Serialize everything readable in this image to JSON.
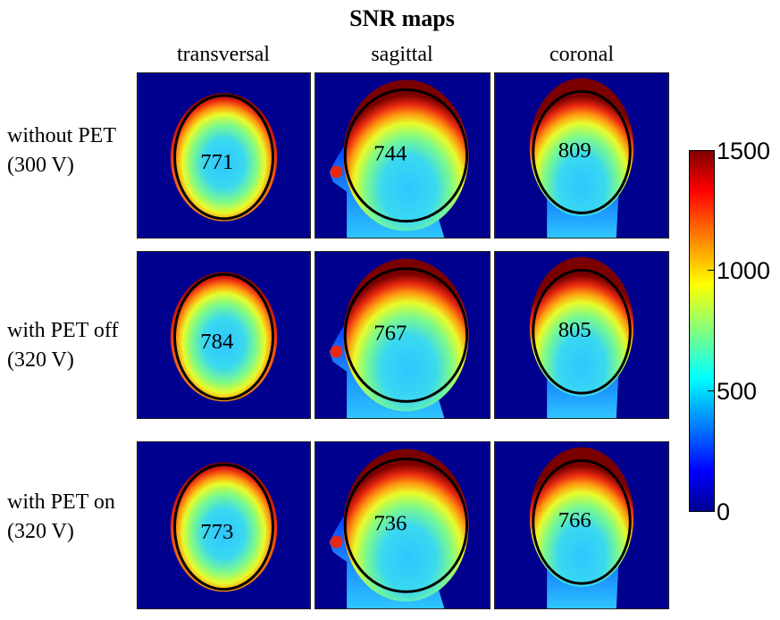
{
  "chart_data": {
    "type": "heatmap",
    "title": "SNR maps",
    "columns": [
      "transversal",
      "sagittal",
      "coronal"
    ],
    "rows": [
      {
        "label_line1": "without PET",
        "label_line2": "(300 V)",
        "values": [
          "771",
          "744",
          "809"
        ]
      },
      {
        "label_line1": "with PET off",
        "label_line2": "(320 V)",
        "values": [
          "784",
          "767",
          "805"
        ]
      },
      {
        "label_line1": "with PET on",
        "label_line2": "(320 V)",
        "values": [
          "773",
          "736",
          "766"
        ]
      }
    ],
    "colorbar": {
      "min": 0,
      "max": 1500,
      "ticks": [
        "0",
        "500",
        "1000",
        "1500"
      ],
      "colormap": "jet"
    }
  },
  "colors": {
    "background_map": "#00008f",
    "roi_outline": "#000000"
  }
}
